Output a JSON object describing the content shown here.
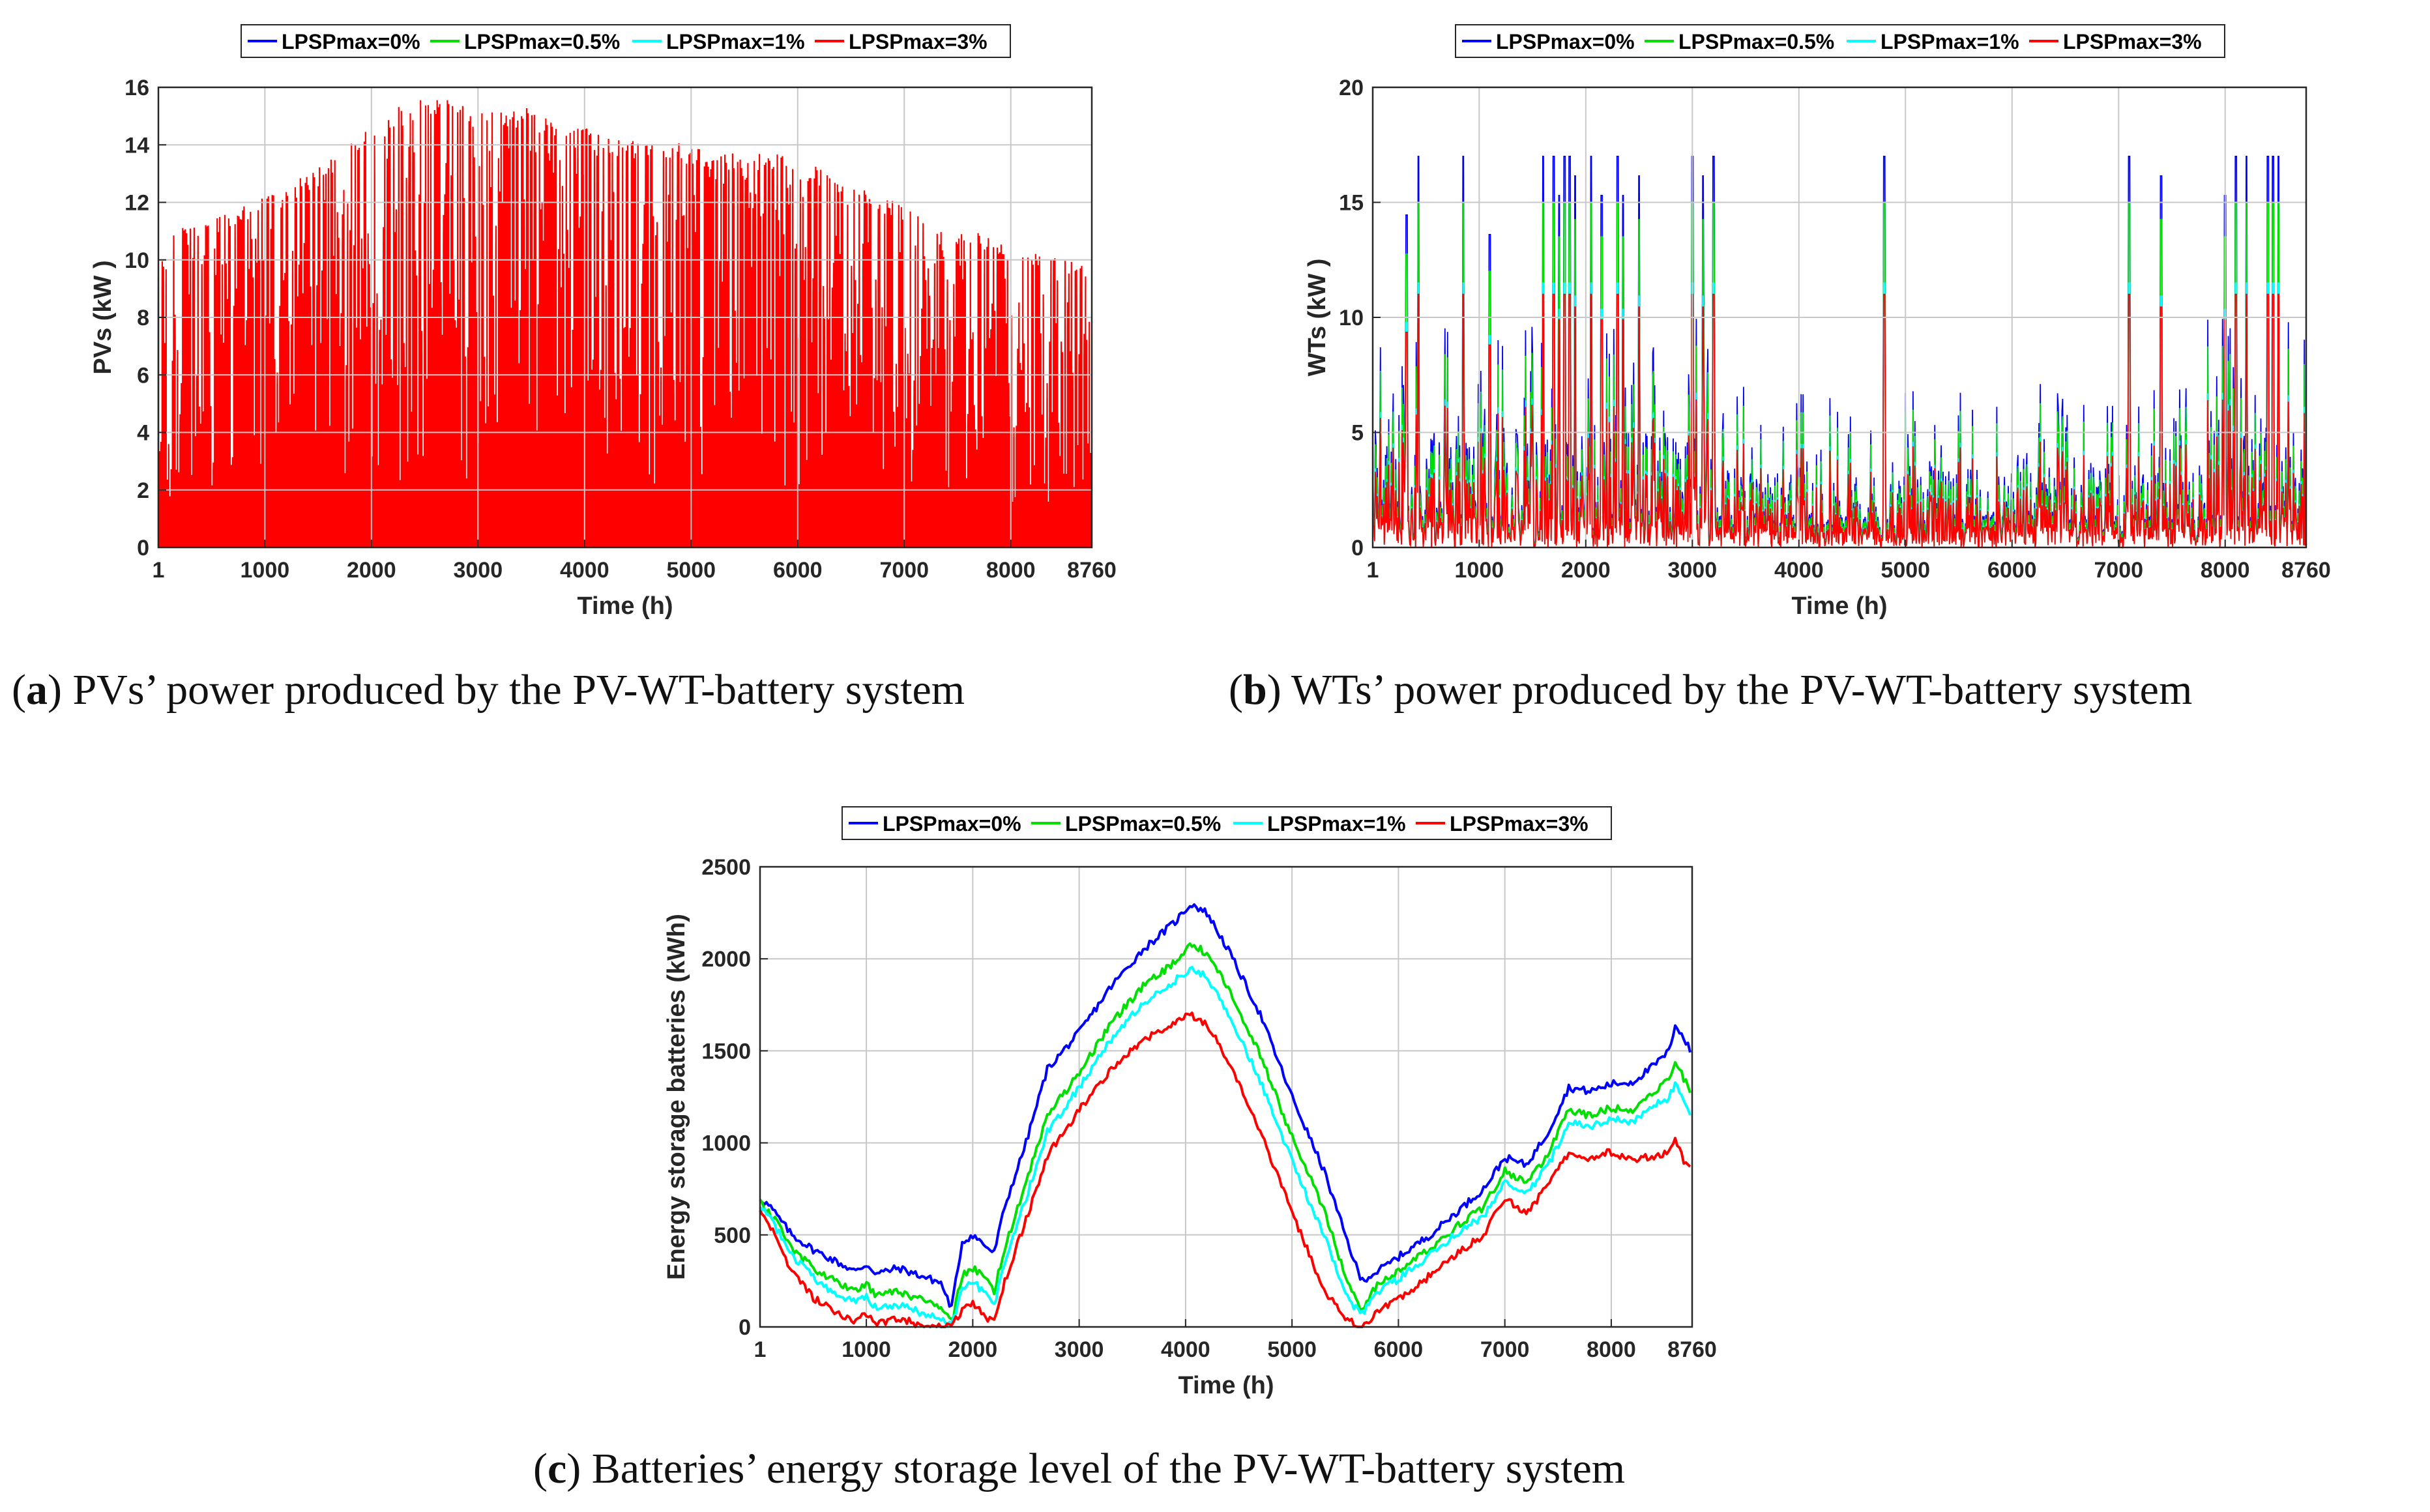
{
  "colors": {
    "series": [
      "#0000ff",
      "#00e000",
      "#00ffff",
      "#ff0000"
    ]
  },
  "panels": [
    {
      "caption_letter": "a",
      "caption_prefix": "(",
      "caption_rest": ") PVs’ power produced by the PV-WT-battery system",
      "legend": [
        "LPSPmax=0%",
        "LPSPmax=0.5%",
        "LPSPmax=1%",
        "LPSPmax=3%"
      ],
      "ylabel": "PVs (kW  )",
      "xlabel": "Time (h)",
      "xticks": [
        "1",
        "1000",
        "2000",
        "3000",
        "4000",
        "5000",
        "6000",
        "7000",
        "8000",
        "8760"
      ],
      "yticks": [
        "0",
        "2",
        "4",
        "6",
        "8",
        "10",
        "12",
        "14",
        "16"
      ]
    },
    {
      "caption_letter": "b",
      "caption_prefix": "(",
      "caption_rest": ") WTs’ power produced by the PV-WT-battery system",
      "legend": [
        "LPSPmax=0%",
        "LPSPmax=0.5%",
        "LPSPmax=1%",
        "LPSPmax=3%"
      ],
      "ylabel": "WTs (kW  )",
      "xlabel": "Time (h)",
      "xticks": [
        "1",
        "1000",
        "2000",
        "3000",
        "4000",
        "5000",
        "6000",
        "7000",
        "8000",
        "8760"
      ],
      "yticks": [
        "0",
        "5",
        "10",
        "15",
        "20"
      ]
    },
    {
      "caption_letter": "c",
      "caption_prefix": "(",
      "caption_rest": ") Batteries’ energy storage level of the PV-WT-battery system",
      "legend": [
        "LPSPmax=0%",
        "LPSPmax=0.5%",
        "LPSPmax=1%",
        "LPSPmax=3%"
      ],
      "ylabel": "Energy storage batteries (kWh)",
      "xlabel": "Time (h)",
      "xticks": [
        "1",
        "1000",
        "2000",
        "3000",
        "4000",
        "5000",
        "6000",
        "7000",
        "8000",
        "8760"
      ],
      "yticks": [
        "0",
        "500",
        "1000",
        "1500",
        "2000",
        "2500"
      ]
    }
  ],
  "chart_data": [
    {
      "type": "line",
      "title": "",
      "xlabel": "Time (h)",
      "ylabel": "PVs (kW  )",
      "xlim": [
        1,
        8760
      ],
      "ylim": [
        0,
        16
      ],
      "grid": true,
      "legend_position": "top",
      "envelope_x": [
        1,
        500,
        1000,
        1500,
        1800,
        2000,
        2200,
        2400,
        2600,
        2800,
        3000,
        3200,
        3400,
        3600,
        3800,
        4000,
        4200,
        4400,
        4600,
        4800,
        5000,
        5200,
        5400,
        5600,
        5800,
        6000,
        6200,
        6400,
        6600,
        6800,
        7000,
        7200,
        7400,
        7600,
        7800,
        8000,
        8200,
        8400,
        8600,
        8760
      ],
      "series": [
        {
          "name": "LPSPmax=0%",
          "peak_values": [
            10.0,
            10.5,
            11.4,
            12.2,
            13.0,
            13.3,
            13.8,
            14.0,
            14.3,
            14.4,
            14.4,
            14.3,
            14.2,
            14.0,
            13.8,
            13.6,
            13.4,
            13.2,
            13.0,
            12.9,
            12.8,
            12.7,
            12.6,
            12.6,
            12.6,
            12.4,
            12.1,
            11.8,
            11.5,
            11.2,
            10.9,
            10.7,
            10.5,
            10.2,
            9.9,
            9.6,
            9.4,
            9.2,
            9.0,
            8.9
          ]
        },
        {
          "name": "LPSPmax=0.5%",
          "peak_values": [
            10.4,
            10.9,
            11.8,
            12.7,
            13.6,
            13.9,
            14.3,
            14.6,
            14.9,
            15.0,
            15.0,
            14.9,
            14.8,
            14.6,
            14.4,
            14.2,
            14.0,
            13.8,
            13.6,
            13.5,
            13.4,
            13.3,
            13.2,
            13.2,
            13.1,
            12.9,
            12.6,
            12.3,
            12.0,
            11.7,
            11.4,
            11.2,
            10.9,
            10.6,
            10.3,
            10.0,
            9.8,
            9.6,
            9.4,
            9.3
          ]
        },
        {
          "name": "LPSPmax=1%",
          "peak_values": [
            10.6,
            11.1,
            12.0,
            12.9,
            13.8,
            14.1,
            14.5,
            14.8,
            15.1,
            15.2,
            15.2,
            15.1,
            15.0,
            14.8,
            14.6,
            14.4,
            14.2,
            14.0,
            13.8,
            13.7,
            13.6,
            13.5,
            13.4,
            13.4,
            13.3,
            13.1,
            12.8,
            12.5,
            12.2,
            11.9,
            11.6,
            11.4,
            11.1,
            10.8,
            10.5,
            10.2,
            10.0,
            9.8,
            9.6,
            9.5
          ]
        },
        {
          "name": "LPSPmax=3%",
          "peak_values": [
            11.0,
            11.4,
            12.2,
            13.2,
            14.2,
            14.6,
            15.3,
            15.5,
            15.8,
            15.6,
            15.3,
            15.1,
            15.4,
            15.0,
            14.9,
            14.6,
            14.4,
            14.2,
            14.0,
            14.1,
            14.0,
            13.7,
            13.8,
            13.8,
            13.7,
            13.5,
            13.2,
            12.8,
            12.5,
            12.2,
            11.9,
            11.7,
            11.4,
            11.1,
            10.8,
            10.5,
            10.3,
            10.1,
            9.9,
            9.8
          ]
        }
      ]
    },
    {
      "type": "line",
      "title": "",
      "xlabel": "Time (h)",
      "ylabel": "WTs (kW  )",
      "xlim": [
        1,
        8760
      ],
      "ylim": [
        0,
        20
      ],
      "grid": true,
      "legend_position": "top",
      "series_max_values": [
        17,
        15,
        11.5,
        11
      ],
      "series": [
        {
          "name": "LPSPmax=0%",
          "max_value": 17
        },
        {
          "name": "LPSPmax=0.5%",
          "max_value": 15
        },
        {
          "name": "LPSPmax=1%",
          "max_value": 11.5
        },
        {
          "name": "LPSPmax=3%",
          "max_value": 11
        }
      ],
      "wind_bursts_x": [
        320,
        430,
        850,
        1100,
        1600,
        1700,
        1750,
        1800,
        1850,
        1900,
        2050,
        2150,
        2300,
        2350,
        2500,
        3000,
        3100,
        3200,
        4800,
        7100,
        7400,
        8000,
        8100,
        8200,
        8400,
        8450,
        8500
      ],
      "wind_bursts_relative_height": [
        0.85,
        1.0,
        1.0,
        0.8,
        1.0,
        1.0,
        0.9,
        1.0,
        1.0,
        0.95,
        1.0,
        0.9,
        1.0,
        0.9,
        0.95,
        1.0,
        0.95,
        1.0,
        1.0,
        1.0,
        0.95,
        0.9,
        1.0,
        1.0,
        1.0,
        1.0,
        1.0
      ]
    },
    {
      "type": "line",
      "title": "",
      "xlabel": "Time (h)",
      "ylabel": "Energy storage batteries (kWh)",
      "xlim": [
        1,
        8760
      ],
      "ylim": [
        0,
        2500
      ],
      "grid": true,
      "legend_position": "top",
      "x": [
        1,
        100,
        300,
        500,
        700,
        900,
        1000,
        1100,
        1300,
        1500,
        1700,
        1800,
        1900,
        2000,
        2100,
        2200,
        2300,
        2500,
        2700,
        3000,
        3300,
        3600,
        3900,
        4050,
        4200,
        4400,
        4700,
        5000,
        5300,
        5500,
        5650,
        5800,
        6000,
        6300,
        6600,
        6800,
        7000,
        7200,
        7400,
        7600,
        7800,
        8000,
        8200,
        8400,
        8550,
        8600,
        8700,
        8760
      ],
      "series": [
        {
          "name": "LPSPmax=0%",
          "values": [
            700,
            650,
            500,
            420,
            360,
            300,
            340,
            290,
            320,
            280,
            240,
            100,
            460,
            500,
            450,
            400,
            650,
            1000,
            1400,
            1600,
            1850,
            2050,
            2200,
            2300,
            2250,
            2050,
            1700,
            1250,
            850,
            500,
            250,
            300,
            380,
            500,
            650,
            750,
            920,
            880,
            1050,
            1300,
            1280,
            1320,
            1330,
            1420,
            1500,
            1650,
            1550,
            1480
          ]
        },
        {
          "name": "LPSPmax=0.5%",
          "values": [
            680,
            620,
            430,
            320,
            250,
            200,
            230,
            170,
            190,
            150,
            110,
            20,
            280,
            320,
            270,
            190,
            430,
            780,
            1150,
            1380,
            1650,
            1850,
            1980,
            2080,
            2030,
            1840,
            1480,
            1030,
            640,
            280,
            90,
            230,
            300,
            430,
            570,
            650,
            850,
            780,
            930,
            1180,
            1150,
            1190,
            1180,
            1280,
            1350,
            1450,
            1330,
            1250
          ]
        },
        {
          "name": "LPSPmax=1%",
          "values": [
            660,
            590,
            390,
            270,
            180,
            130,
            160,
            100,
            120,
            80,
            50,
            10,
            200,
            250,
            190,
            110,
            360,
            700,
            1060,
            1300,
            1560,
            1760,
            1880,
            1950,
            1900,
            1710,
            1340,
            900,
            500,
            180,
            60,
            190,
            260,
            390,
            530,
            600,
            790,
            720,
            870,
            1110,
            1090,
            1130,
            1110,
            1200,
            1250,
            1330,
            1200,
            1100
          ]
        },
        {
          "name": "LPSPmax=3%",
          "values": [
            620,
            540,
            300,
            160,
            80,
            30,
            70,
            20,
            50,
            10,
            0,
            0,
            90,
            130,
            70,
            20,
            250,
            580,
            930,
            1180,
            1400,
            1560,
            1650,
            1700,
            1640,
            1450,
            1060,
            620,
            200,
            50,
            0,
            80,
            150,
            280,
            420,
            500,
            700,
            620,
            760,
            950,
            920,
            950,
            900,
            930,
            950,
            1020,
            880,
            840
          ]
        }
      ]
    }
  ]
}
